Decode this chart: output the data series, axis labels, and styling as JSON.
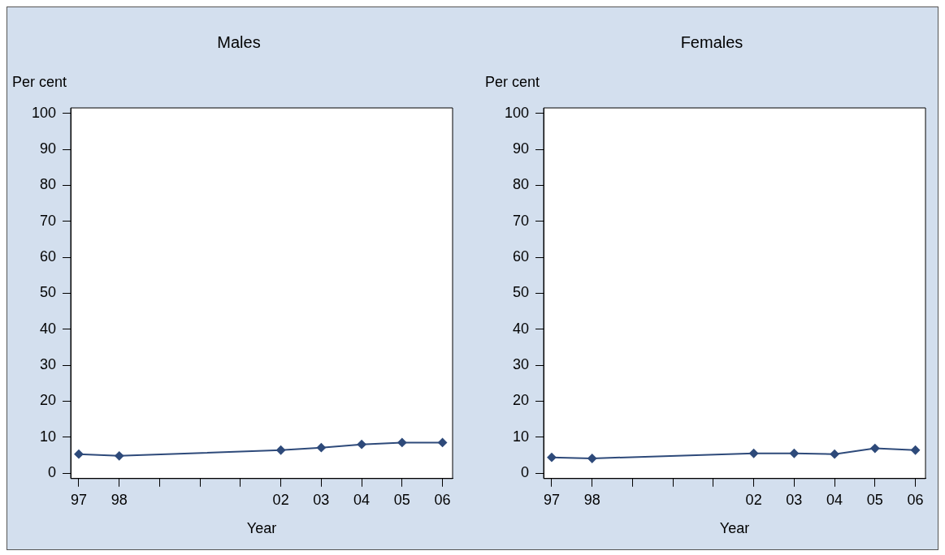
{
  "chart_data": [
    {
      "type": "line",
      "title": "Males",
      "ylabel": "Per cent",
      "xlabel": "Year",
      "x": [
        1997,
        1998,
        2002,
        2003,
        2004,
        2005,
        2006
      ],
      "series": [
        {
          "color": "#2e4a7a",
          "values": [
            5.3,
            4.8,
            6.4,
            7.1,
            8.0,
            8.5,
            8.5
          ]
        }
      ],
      "xlim": [
        1996.8,
        2006.25
      ],
      "xticks": [
        {
          "value": 1997,
          "label": "97"
        },
        {
          "value": 1998,
          "label": "98"
        },
        {
          "value": 1999,
          "label": null
        },
        {
          "value": 2000,
          "label": null
        },
        {
          "value": 2001,
          "label": null
        },
        {
          "value": 2002,
          "label": "02"
        },
        {
          "value": 2003,
          "label": "03"
        },
        {
          "value": 2004,
          "label": "04"
        },
        {
          "value": 2005,
          "label": "05"
        },
        {
          "value": 2006,
          "label": "06"
        }
      ],
      "ylim": [
        -1.5,
        101.5
      ],
      "yticks": [
        0,
        10,
        20,
        30,
        40,
        50,
        60,
        70,
        80,
        90,
        100
      ],
      "marker": "diamond",
      "line_style": "solid"
    },
    {
      "type": "line",
      "title": "Females",
      "ylabel": "Per cent",
      "xlabel": "Year",
      "x": [
        1997,
        1998,
        2002,
        2003,
        2004,
        2005,
        2006
      ],
      "series": [
        {
          "color": "#2e4a7a",
          "values": [
            4.4,
            4.1,
            5.5,
            5.5,
            5.3,
            6.9,
            6.4
          ]
        }
      ],
      "xlim": [
        1996.8,
        2006.25
      ],
      "xticks": [
        {
          "value": 1997,
          "label": "97"
        },
        {
          "value": 1998,
          "label": "98"
        },
        {
          "value": 1999,
          "label": null
        },
        {
          "value": 2000,
          "label": null
        },
        {
          "value": 2001,
          "label": null
        },
        {
          "value": 2002,
          "label": "02"
        },
        {
          "value": 2003,
          "label": "03"
        },
        {
          "value": 2004,
          "label": "04"
        },
        {
          "value": 2005,
          "label": "05"
        },
        {
          "value": 2006,
          "label": "06"
        }
      ],
      "ylim": [
        -1.5,
        101.5
      ],
      "yticks": [
        0,
        10,
        20,
        30,
        40,
        50,
        60,
        70,
        80,
        90,
        100
      ],
      "marker": "diamond",
      "line_style": "solid"
    }
  ]
}
